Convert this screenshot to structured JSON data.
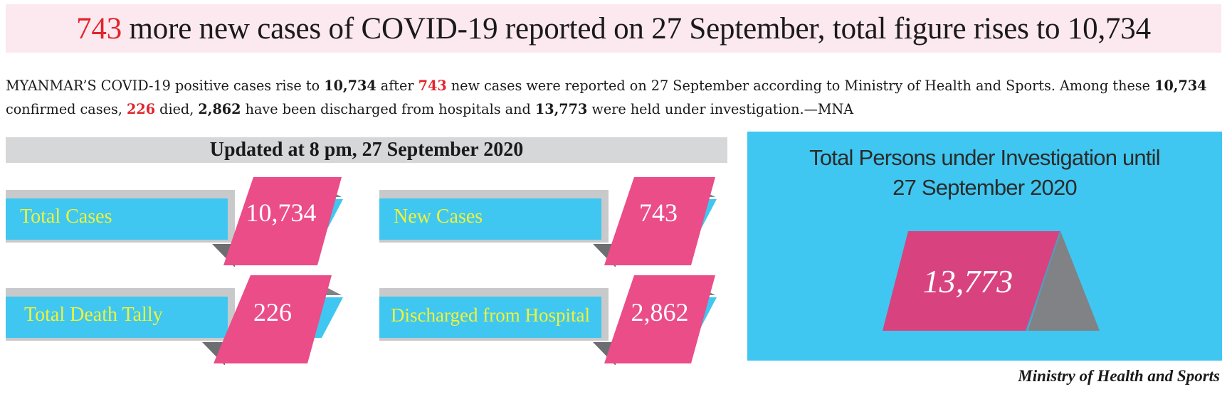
{
  "headline": {
    "number": "743",
    "rest": " more new cases of COVID-19 reported on 27 September, total figure rises to 10,734"
  },
  "lede": {
    "p1": "MYANMAR’S COVID-19 positive cases rise to ",
    "v1": "10,734",
    "p2": " after ",
    "v2": "743",
    "p3": " new cases were reported on 27 September according to Ministry of Health and Sports. Among these ",
    "v3": "10,734",
    "p4": " confirmed cases, ",
    "v4": "226",
    "p5": " died, ",
    "v5": "2,862",
    "p6": " have been discharged from hospitals and ",
    "v6": "13,773",
    "p7": " were held under investigation.—MNA"
  },
  "updated_label": "Updated at 8 pm, 27 September 2020",
  "stats": [
    {
      "label": "Total Cases",
      "value": "10,734"
    },
    {
      "label": "New Cases",
      "value": "743"
    },
    {
      "label": "Total Death Tally",
      "value": "226"
    },
    {
      "label": "Discharged from Hospital",
      "value": "2,862"
    }
  ],
  "investigation": {
    "title_line1": "Total Persons under Investigation until",
    "title_line2": "27 September 2020",
    "value": "13,773"
  },
  "credit": "Ministry of Health and Sports",
  "colors": {
    "headline_bg": "#fce8ef",
    "accent_red": "#e0252b",
    "cyan": "#3fc7f1",
    "pink": "#ea4d88",
    "label_yellow": "#f2f236",
    "gray": "#808285"
  }
}
